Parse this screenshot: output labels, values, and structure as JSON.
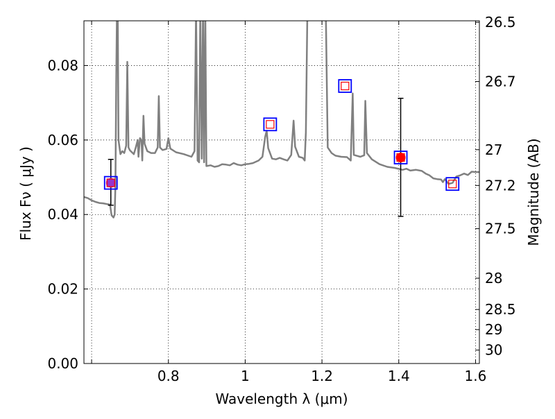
{
  "chart_data": {
    "type": "line",
    "xlabel": "Wavelength  λ (μm)",
    "ylabel": "Flux  Fν  ( μJy )",
    "ylabel_right": "Magnitude (AB)",
    "xlim": [
      0.58,
      1.61
    ],
    "ylim": [
      0.0,
      0.092
    ],
    "grid": true,
    "x_ticks": [
      {
        "value": 0.6,
        "label": ""
      },
      {
        "value": 0.8,
        "label": "0.8"
      },
      {
        "value": 1.0,
        "label": "1"
      },
      {
        "value": 1.2,
        "label": "1.2"
      },
      {
        "value": 1.4,
        "label": "1.4"
      },
      {
        "value": 1.6,
        "label": "1.6"
      }
    ],
    "y_ticks": [
      {
        "value": 0.0,
        "label": "0.00"
      },
      {
        "value": 0.02,
        "label": "0.02"
      },
      {
        "value": 0.04,
        "label": "0.04"
      },
      {
        "value": 0.06,
        "label": "0.06"
      },
      {
        "value": 0.08,
        "label": "0.08"
      }
    ],
    "right_ticks": [
      {
        "label": "26.5",
        "flux": 0.0916
      },
      {
        "label": "26.7",
        "flux": 0.0757
      },
      {
        "label": "27",
        "flux": 0.0574
      },
      {
        "label": "27.2",
        "flux": 0.0478
      },
      {
        "label": "27.5",
        "flux": 0.0362
      },
      {
        "label": "28",
        "flux": 0.0229
      },
      {
        "label": "28.5",
        "flux": 0.0145
      },
      {
        "label": "29",
        "flux": 0.0091
      },
      {
        "label": "30",
        "flux": 0.0036
      }
    ],
    "colors": {
      "model": "#808080",
      "model_box": "#0000ff",
      "model_inner": "#ff0000",
      "observed": "#ff0000",
      "observed_low": "#9933cc",
      "errorbar": "#000000"
    },
    "series": [
      {
        "kind": "model_spectrum",
        "points": [
          [
            0.58,
            0.0447
          ],
          [
            0.59,
            0.0444
          ],
          [
            0.6,
            0.0438
          ],
          [
            0.61,
            0.0434
          ],
          [
            0.62,
            0.0431
          ],
          [
            0.63,
            0.043
          ],
          [
            0.64,
            0.0428
          ],
          [
            0.648,
            0.0427
          ],
          [
            0.652,
            0.0398
          ],
          [
            0.657,
            0.0392
          ],
          [
            0.66,
            0.04
          ],
          [
            0.662,
            0.048
          ],
          [
            0.664,
            0.075
          ],
          [
            0.666,
            0.095
          ],
          [
            0.668,
            0.095
          ],
          [
            0.67,
            0.06
          ],
          [
            0.675,
            0.0562
          ],
          [
            0.68,
            0.057
          ],
          [
            0.685,
            0.0565
          ],
          [
            0.69,
            0.0585
          ],
          [
            0.693,
            0.081
          ],
          [
            0.696,
            0.058
          ],
          [
            0.7,
            0.0572
          ],
          [
            0.71,
            0.0562
          ],
          [
            0.715,
            0.058
          ],
          [
            0.72,
            0.06
          ],
          [
            0.722,
            0.0555
          ],
          [
            0.726,
            0.0605
          ],
          [
            0.73,
            0.0598
          ],
          [
            0.732,
            0.0545
          ],
          [
            0.735,
            0.0665
          ],
          [
            0.738,
            0.059
          ],
          [
            0.745,
            0.057
          ],
          [
            0.755,
            0.0565
          ],
          [
            0.765,
            0.0565
          ],
          [
            0.772,
            0.058
          ],
          [
            0.775,
            0.0718
          ],
          [
            0.778,
            0.058
          ],
          [
            0.785,
            0.0573
          ],
          [
            0.795,
            0.0576
          ],
          [
            0.8,
            0.0605
          ],
          [
            0.805,
            0.0577
          ],
          [
            0.82,
            0.0567
          ],
          [
            0.84,
            0.0562
          ],
          [
            0.86,
            0.0555
          ],
          [
            0.868,
            0.057
          ],
          [
            0.872,
            0.095
          ],
          [
            0.876,
            0.0545
          ],
          [
            0.88,
            0.054
          ],
          [
            0.883,
            0.095
          ],
          [
            0.887,
            0.055
          ],
          [
            0.89,
            0.095
          ],
          [
            0.893,
            0.054
          ],
          [
            0.896,
            0.095
          ],
          [
            0.899,
            0.053
          ],
          [
            0.91,
            0.0532
          ],
          [
            0.92,
            0.0528
          ],
          [
            0.93,
            0.053
          ],
          [
            0.94,
            0.0535
          ],
          [
            0.95,
            0.0534
          ],
          [
            0.96,
            0.0532
          ],
          [
            0.97,
            0.0538
          ],
          [
            0.98,
            0.0534
          ],
          [
            0.99,
            0.0532
          ],
          [
            1.0,
            0.0535
          ],
          [
            1.01,
            0.0536
          ],
          [
            1.02,
            0.0538
          ],
          [
            1.035,
            0.0545
          ],
          [
            1.045,
            0.0555
          ],
          [
            1.052,
            0.0608
          ],
          [
            1.056,
            0.0625
          ],
          [
            1.06,
            0.0578
          ],
          [
            1.07,
            0.055
          ],
          [
            1.08,
            0.0548
          ],
          [
            1.09,
            0.0552
          ],
          [
            1.1,
            0.0548
          ],
          [
            1.11,
            0.0545
          ],
          [
            1.12,
            0.056
          ],
          [
            1.126,
            0.0652
          ],
          [
            1.13,
            0.0582
          ],
          [
            1.14,
            0.0555
          ],
          [
            1.15,
            0.0552
          ],
          [
            1.155,
            0.0545
          ],
          [
            1.158,
            0.062
          ],
          [
            1.162,
            0.095
          ],
          [
            1.2,
            0.095
          ],
          [
            1.21,
            0.095
          ],
          [
            1.215,
            0.058
          ],
          [
            1.225,
            0.0565
          ],
          [
            1.235,
            0.0558
          ],
          [
            1.25,
            0.0555
          ],
          [
            1.265,
            0.0554
          ],
          [
            1.275,
            0.0545
          ],
          [
            1.28,
            0.0725
          ],
          [
            1.283,
            0.056
          ],
          [
            1.29,
            0.0558
          ],
          [
            1.3,
            0.0555
          ],
          [
            1.31,
            0.0559
          ],
          [
            1.313,
            0.0705
          ],
          [
            1.317,
            0.0565
          ],
          [
            1.33,
            0.0548
          ],
          [
            1.35,
            0.0535
          ],
          [
            1.37,
            0.0528
          ],
          [
            1.39,
            0.0525
          ],
          [
            1.41,
            0.052
          ],
          [
            1.42,
            0.0523
          ],
          [
            1.43,
            0.0518
          ],
          [
            1.445,
            0.052
          ],
          [
            1.46,
            0.0517
          ],
          [
            1.47,
            0.051
          ],
          [
            1.48,
            0.0505
          ],
          [
            1.49,
            0.0497
          ],
          [
            1.5,
            0.0495
          ],
          [
            1.51,
            0.0494
          ],
          [
            1.515,
            0.0487
          ],
          [
            1.52,
            0.0495
          ],
          [
            1.53,
            0.0482
          ],
          [
            1.54,
            0.0485
          ],
          [
            1.55,
            0.0502
          ],
          [
            1.56,
            0.0505
          ],
          [
            1.57,
            0.051
          ],
          [
            1.58,
            0.0506
          ],
          [
            1.59,
            0.0515
          ],
          [
            1.6,
            0.0514
          ],
          [
            1.61,
            0.0514
          ]
        ]
      },
      {
        "kind": "model_photometry",
        "points": [
          {
            "x": 0.65,
            "y": 0.0485
          },
          {
            "x": 1.065,
            "y": 0.0642
          },
          {
            "x": 1.26,
            "y": 0.0745
          },
          {
            "x": 1.405,
            "y": 0.0553
          },
          {
            "x": 1.54,
            "y": 0.0482
          }
        ]
      },
      {
        "kind": "observed_photometry",
        "points": [
          {
            "x": 0.65,
            "y": 0.0485,
            "ylo": 0.0425,
            "yhi": 0.0548,
            "color": "#9933cc"
          },
          {
            "x": 1.405,
            "y": 0.0553,
            "ylo": 0.0395,
            "yhi": 0.0712,
            "color": "#ff0000"
          }
        ]
      }
    ]
  }
}
